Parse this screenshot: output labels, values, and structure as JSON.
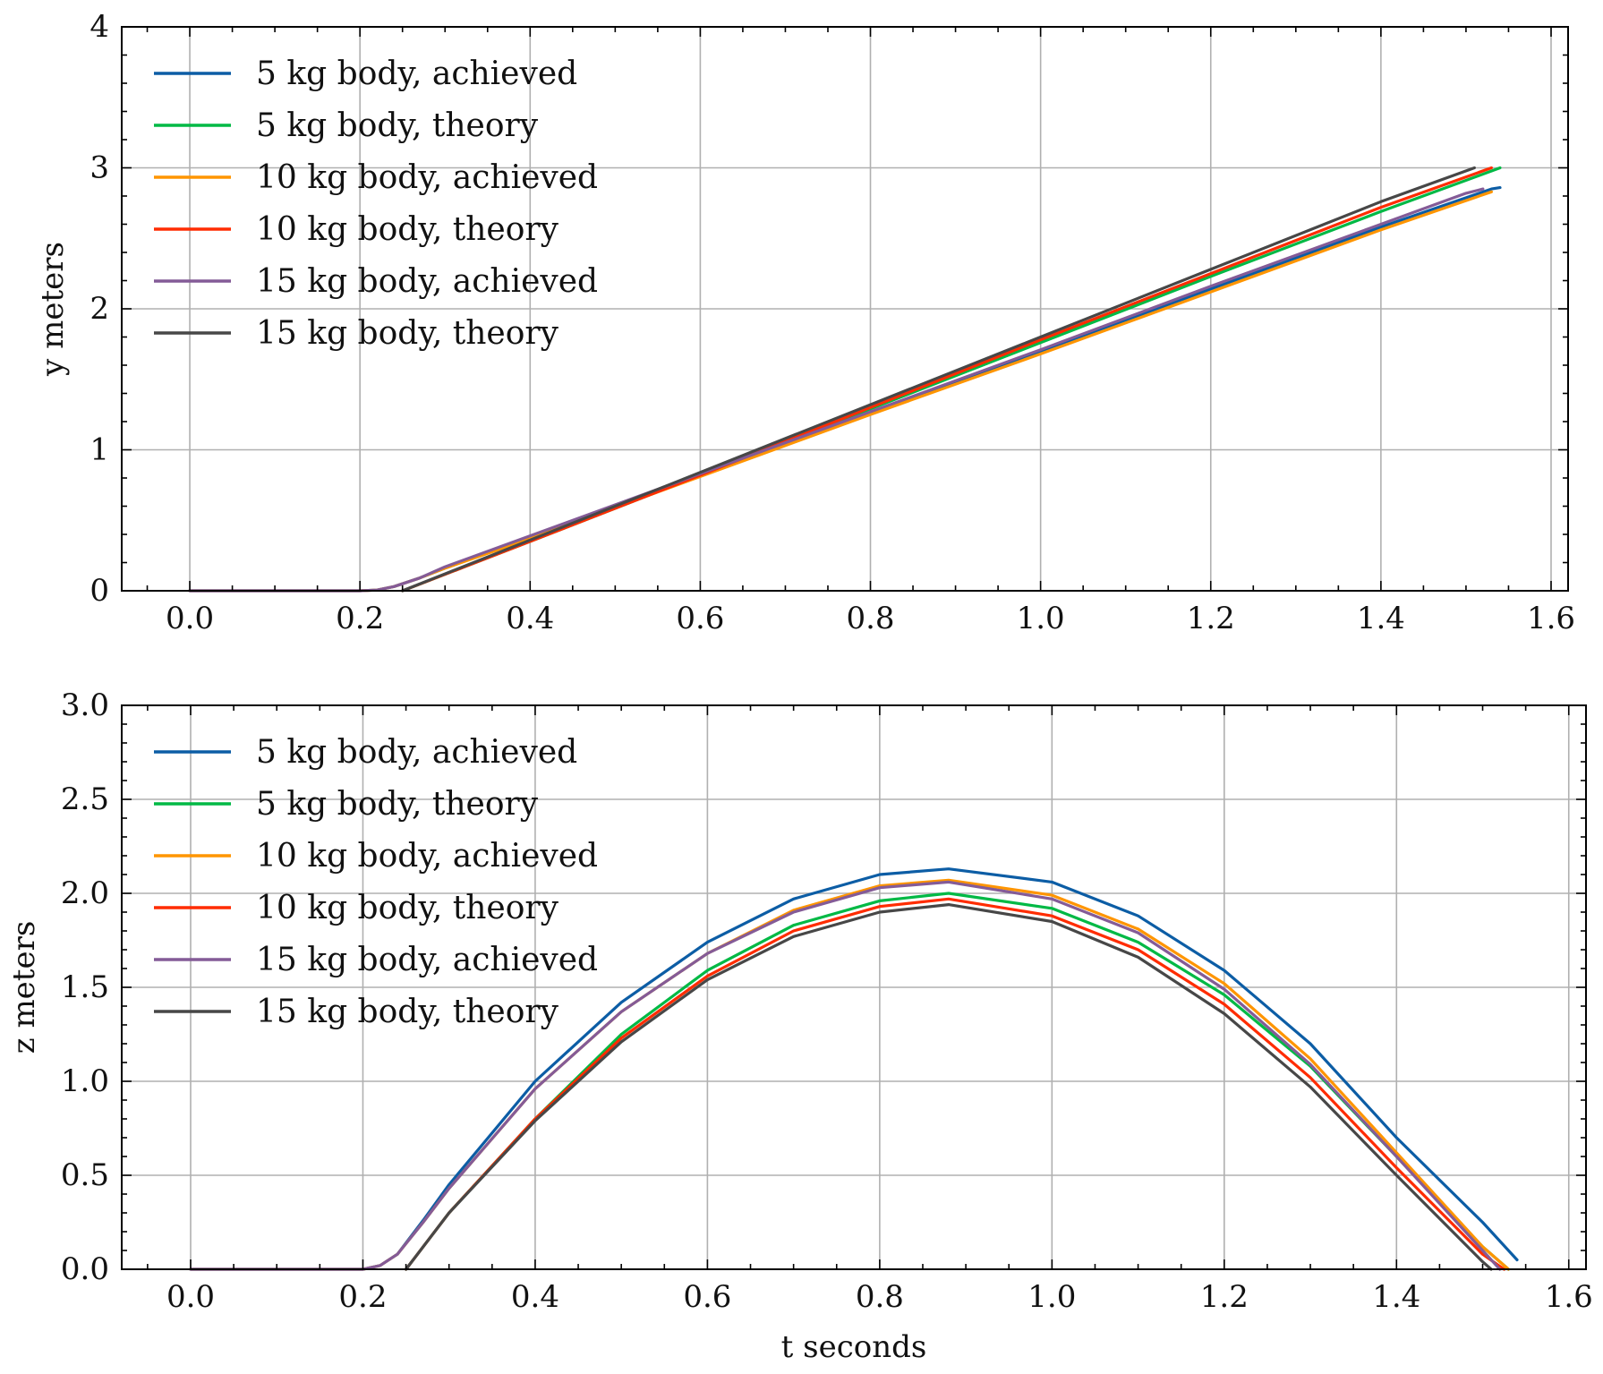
{
  "chart_data": [
    {
      "type": "line",
      "id": "top",
      "xlabel": "t seconds",
      "ylabel": "y meters",
      "xlim": [
        -0.08,
        1.62
      ],
      "ylim": [
        0,
        4
      ],
      "xticks": [
        0.0,
        0.2,
        0.4,
        0.6,
        0.8,
        1.0,
        1.2,
        1.4,
        1.6
      ],
      "xtick_labels": [
        "0.0",
        "0.2",
        "0.4",
        "0.6",
        "0.8",
        "1.0",
        "1.2",
        "1.4",
        "1.6"
      ],
      "yticks": [
        0,
        1,
        2,
        3,
        4
      ],
      "ytick_labels": [
        "0",
        "1",
        "2",
        "3",
        "4"
      ],
      "grid": true,
      "legend_position": "top-left",
      "series": [
        {
          "name": "5 kg body, achieved",
          "color": "#0C5DA5",
          "x": [
            0.0,
            0.2,
            0.22,
            0.24,
            0.27,
            0.3,
            0.4,
            0.6,
            0.8,
            1.0,
            1.2,
            1.4,
            1.53,
            1.54
          ],
          "y": [
            0.0,
            0.0,
            0.005,
            0.03,
            0.09,
            0.16,
            0.38,
            0.82,
            1.26,
            1.7,
            2.14,
            2.58,
            2.85,
            2.86
          ]
        },
        {
          "name": "5 kg body, theory",
          "color": "#00B945",
          "x": [
            0.25,
            0.4,
            0.6,
            0.8,
            1.0,
            1.2,
            1.4,
            1.54
          ],
          "y": [
            0.0,
            0.35,
            0.82,
            1.29,
            1.76,
            2.23,
            2.69,
            3.0
          ]
        },
        {
          "name": "10 kg body, achieved",
          "color": "#FF9500",
          "x": [
            0.0,
            0.2,
            0.22,
            0.24,
            0.27,
            0.3,
            0.4,
            0.6,
            0.8,
            1.0,
            1.2,
            1.4,
            1.53
          ],
          "y": [
            0.0,
            0.0,
            0.005,
            0.03,
            0.09,
            0.16,
            0.37,
            0.81,
            1.25,
            1.68,
            2.12,
            2.56,
            2.83
          ]
        },
        {
          "name": "10 kg body, theory",
          "color": "#FF2C00",
          "x": [
            0.25,
            0.4,
            0.6,
            0.8,
            1.0,
            1.2,
            1.4,
            1.53
          ],
          "y": [
            0.0,
            0.35,
            0.82,
            1.3,
            1.78,
            2.25,
            2.72,
            3.0
          ]
        },
        {
          "name": "15 kg body, achieved",
          "color": "#845B97",
          "x": [
            0.0,
            0.2,
            0.22,
            0.24,
            0.27,
            0.3,
            0.4,
            0.6,
            0.8,
            1.0,
            1.2,
            1.4,
            1.5,
            1.52
          ],
          "y": [
            0.0,
            0.0,
            0.005,
            0.03,
            0.09,
            0.17,
            0.39,
            0.83,
            1.27,
            1.71,
            2.16,
            2.6,
            2.82,
            2.85
          ]
        },
        {
          "name": "15 kg body, theory",
          "color": "#474747",
          "x": [
            0.25,
            0.4,
            0.6,
            0.8,
            1.0,
            1.2,
            1.4,
            1.51
          ],
          "y": [
            0.0,
            0.36,
            0.84,
            1.32,
            1.8,
            2.28,
            2.76,
            3.0
          ]
        }
      ]
    },
    {
      "type": "line",
      "id": "bottom",
      "xlabel": "t seconds",
      "ylabel": "z meters",
      "xlim": [
        -0.08,
        1.62
      ],
      "ylim": [
        0,
        3
      ],
      "xticks": [
        0.0,
        0.2,
        0.4,
        0.6,
        0.8,
        1.0,
        1.2,
        1.4,
        1.6
      ],
      "xtick_labels": [
        "0.0",
        "0.2",
        "0.4",
        "0.6",
        "0.8",
        "1.0",
        "1.2",
        "1.4",
        "1.6"
      ],
      "yticks": [
        0.0,
        0.5,
        1.0,
        1.5,
        2.0,
        2.5,
        3.0
      ],
      "ytick_labels": [
        "0.0",
        "0.5",
        "1.0",
        "1.5",
        "2.0",
        "2.5",
        "3.0"
      ],
      "grid": true,
      "legend_position": "top-left",
      "series": [
        {
          "name": "5 kg body, achieved",
          "color": "#0C5DA5",
          "x": [
            0.0,
            0.2,
            0.22,
            0.24,
            0.27,
            0.3,
            0.4,
            0.5,
            0.6,
            0.7,
            0.8,
            0.88,
            1.0,
            1.1,
            1.2,
            1.3,
            1.4,
            1.5,
            1.54
          ],
          "y": [
            0.0,
            0.0,
            0.02,
            0.08,
            0.26,
            0.45,
            1.0,
            1.42,
            1.74,
            1.97,
            2.1,
            2.13,
            2.06,
            1.88,
            1.59,
            1.2,
            0.7,
            0.25,
            0.05
          ]
        },
        {
          "name": "5 kg body, theory",
          "color": "#00B945",
          "x": [
            0.25,
            0.3,
            0.4,
            0.5,
            0.6,
            0.7,
            0.8,
            0.88,
            1.0,
            1.1,
            1.2,
            1.3,
            1.4,
            1.5,
            1.53
          ],
          "y": [
            0.0,
            0.3,
            0.8,
            1.25,
            1.59,
            1.83,
            1.96,
            2.0,
            1.92,
            1.74,
            1.46,
            1.08,
            0.6,
            0.12,
            0.0
          ]
        },
        {
          "name": "10 kg body, achieved",
          "color": "#FF9500",
          "x": [
            0.0,
            0.2,
            0.22,
            0.24,
            0.27,
            0.3,
            0.4,
            0.5,
            0.6,
            0.7,
            0.8,
            0.88,
            1.0,
            1.1,
            1.2,
            1.3,
            1.4,
            1.5,
            1.53
          ],
          "y": [
            0.0,
            0.0,
            0.02,
            0.08,
            0.25,
            0.43,
            0.96,
            1.37,
            1.68,
            1.91,
            2.04,
            2.07,
            1.99,
            1.81,
            1.52,
            1.12,
            0.62,
            0.12,
            0.0
          ]
        },
        {
          "name": "10 kg body, theory",
          "color": "#FF2C00",
          "x": [
            0.25,
            0.3,
            0.4,
            0.5,
            0.6,
            0.7,
            0.8,
            0.88,
            1.0,
            1.1,
            1.2,
            1.3,
            1.4,
            1.5,
            1.525
          ],
          "y": [
            0.0,
            0.3,
            0.8,
            1.23,
            1.56,
            1.8,
            1.93,
            1.97,
            1.88,
            1.7,
            1.41,
            1.02,
            0.54,
            0.08,
            0.0
          ]
        },
        {
          "name": "15 kg body, achieved",
          "color": "#845B97",
          "x": [
            0.0,
            0.2,
            0.22,
            0.24,
            0.27,
            0.3,
            0.4,
            0.5,
            0.6,
            0.7,
            0.8,
            0.88,
            1.0,
            1.1,
            1.2,
            1.3,
            1.4,
            1.5,
            1.52
          ],
          "y": [
            0.0,
            0.0,
            0.02,
            0.08,
            0.25,
            0.43,
            0.96,
            1.37,
            1.68,
            1.9,
            2.03,
            2.06,
            1.97,
            1.79,
            1.49,
            1.09,
            0.6,
            0.1,
            0.0
          ]
        },
        {
          "name": "15 kg body, theory",
          "color": "#474747",
          "x": [
            0.25,
            0.3,
            0.4,
            0.5,
            0.6,
            0.7,
            0.8,
            0.88,
            1.0,
            1.1,
            1.2,
            1.3,
            1.4,
            1.5,
            1.51
          ],
          "y": [
            0.0,
            0.3,
            0.79,
            1.21,
            1.54,
            1.77,
            1.9,
            1.94,
            1.85,
            1.66,
            1.36,
            0.97,
            0.5,
            0.04,
            0.0
          ]
        }
      ]
    }
  ]
}
